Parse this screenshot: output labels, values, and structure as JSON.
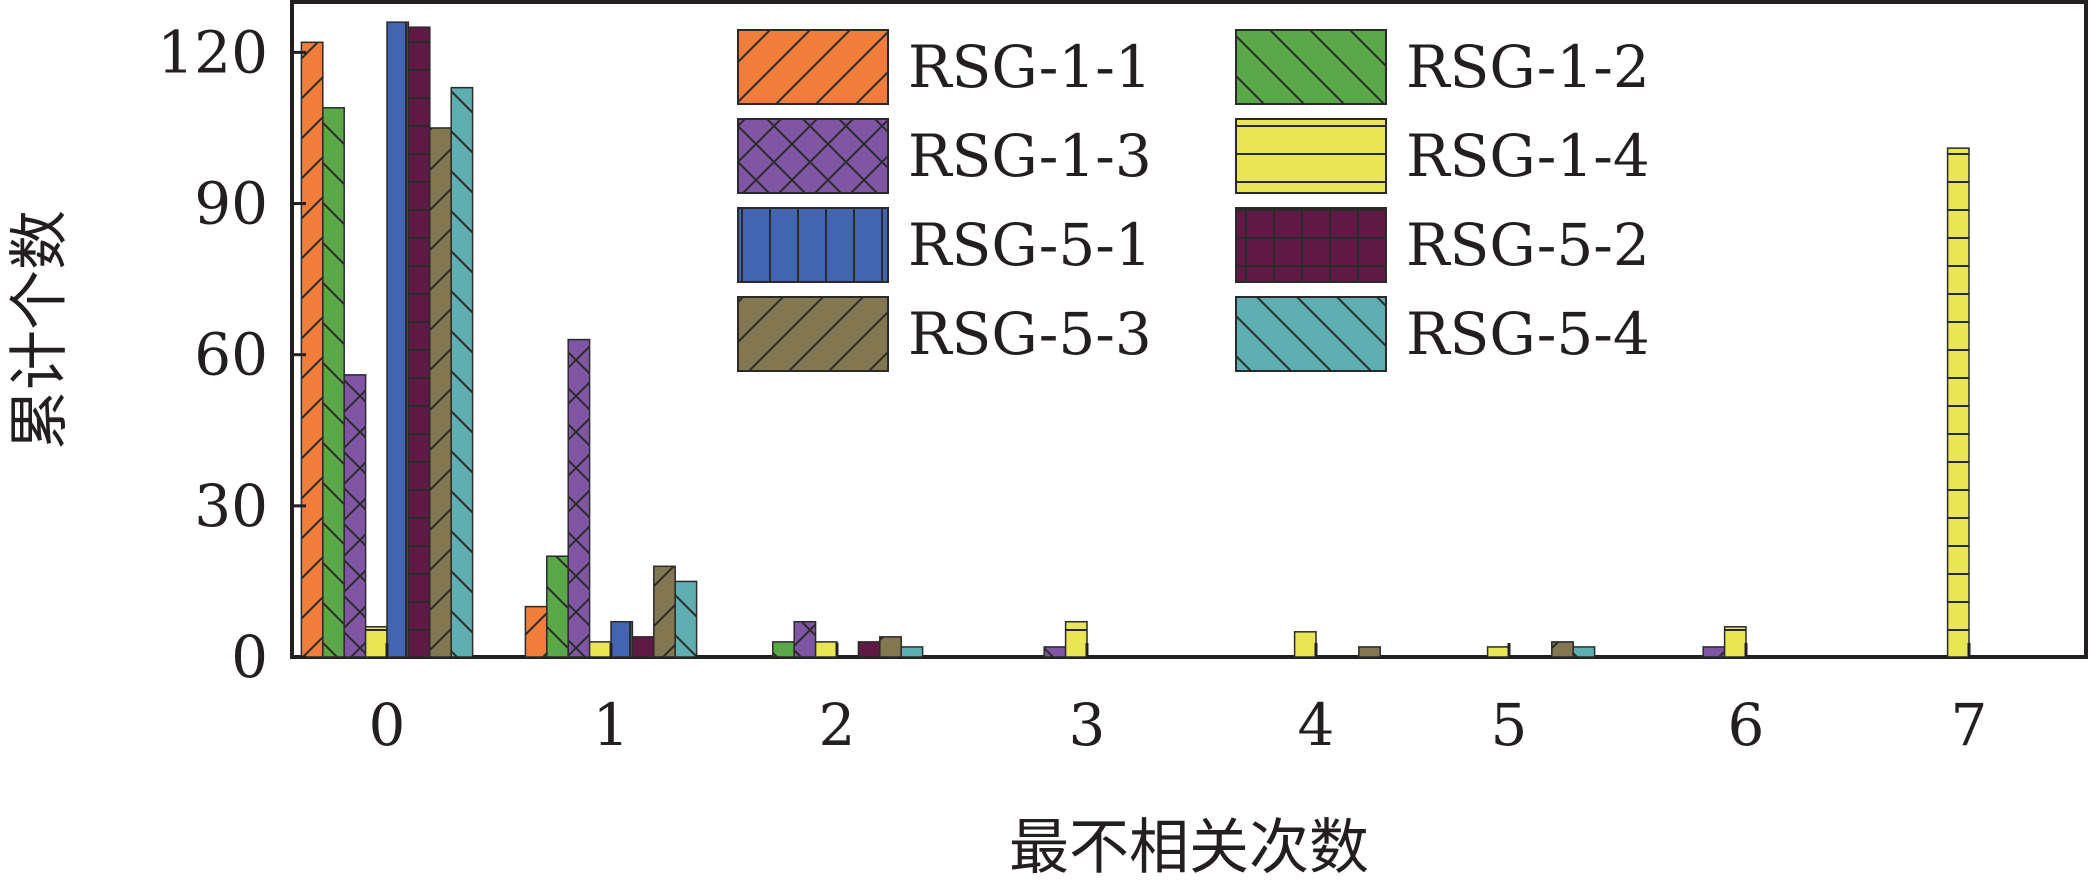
{
  "chart_data": {
    "type": "bar",
    "title": "",
    "xlabel": "最不相关次数",
    "ylabel": "累计个数",
    "categories": [
      "0",
      "1",
      "2",
      "3",
      "4",
      "5",
      "6",
      "7"
    ],
    "ylim": [
      0,
      130
    ],
    "yticks": [
      0,
      30,
      60,
      90,
      120
    ],
    "grid": false,
    "legend_position": "top-right",
    "series": [
      {
        "name": "RSG-1-1",
        "color": "#f07d3c",
        "hatch": "forward-diagonal",
        "values": [
          122,
          10,
          0,
          0,
          0,
          0,
          0,
          0
        ]
      },
      {
        "name": "RSG-1-2",
        "color": "#5aa84a",
        "hatch": "back-diagonal",
        "values": [
          109,
          20,
          3,
          0,
          0,
          0,
          0,
          0
        ]
      },
      {
        "name": "RSG-1-3",
        "color": "#8056a4",
        "hatch": "crosshatch",
        "values": [
          56,
          63,
          7,
          2,
          0,
          0,
          2,
          0
        ]
      },
      {
        "name": "RSG-1-4",
        "color": "#e8e655",
        "hatch": "horizontal",
        "values": [
          6,
          3,
          3,
          7,
          5,
          2,
          6,
          101
        ]
      },
      {
        "name": "RSG-5-1",
        "color": "#4364ae",
        "hatch": "vertical",
        "values": [
          126,
          7,
          0,
          0,
          0,
          0,
          0,
          0
        ]
      },
      {
        "name": "RSG-5-2",
        "color": "#5e1a45",
        "hatch": "grid",
        "values": [
          125,
          4,
          3,
          0,
          0,
          0,
          0,
          0
        ]
      },
      {
        "name": "RSG-5-3",
        "color": "#827751",
        "hatch": "forward-diagonal",
        "values": [
          105,
          18,
          4,
          0,
          2,
          3,
          0,
          0
        ]
      },
      {
        "name": "RSG-5-4",
        "color": "#5eaeb2",
        "hatch": "back-diagonal",
        "values": [
          113,
          15,
          2,
          0,
          0,
          2,
          0,
          0
        ]
      }
    ]
  }
}
